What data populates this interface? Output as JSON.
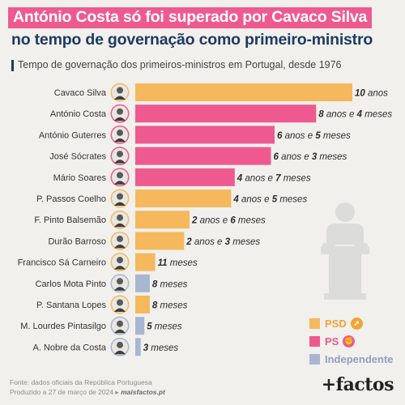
{
  "header": {
    "title_line1": "António Costa só foi superado por Cavaco Silva",
    "title_line2": "no tempo de governação como primeiro-ministro",
    "subtitle": "Tempo de governação dos primeiros-ministros em Portugal, desde 1976"
  },
  "colors": {
    "PSD": "#f5b85c",
    "PS": "#ee5a8f",
    "Independente": "#a9b6d1",
    "title_bg": "#ee5a8f",
    "title_blue": "#1f3b63"
  },
  "chart_data": {
    "type": "bar",
    "orientation": "horizontal",
    "unit": "months",
    "categories": [
      "Cavaco Silva",
      "António Costa",
      "António Guterres",
      "José Sócrates",
      "Mário Soares",
      "P. Passos Coelho",
      "F. Pinto Balsemão",
      "Durão Barroso",
      "Francisco Sá Carneiro",
      "Carlos Mota Pinto",
      "P. Santana Lopes",
      "M. Lourdes Pintasilgo",
      "A. Nobre da Costa"
    ],
    "values": [
      120,
      100,
      77,
      75,
      55,
      53,
      30,
      27,
      11,
      8,
      8,
      5,
      3
    ],
    "parties": [
      "PSD",
      "PS",
      "PS",
      "PS",
      "PS",
      "PSD",
      "PSD",
      "PSD",
      "PSD",
      "Independente",
      "PSD",
      "Independente",
      "Independente"
    ],
    "data_labels": [
      [
        {
          "n": "10",
          "b": true
        },
        {
          "n": " anos",
          "b": false
        }
      ],
      [
        {
          "n": "8",
          "b": true
        },
        {
          "n": " anos e ",
          "b": false
        },
        {
          "n": "4",
          "b": true
        },
        {
          "n": " meses",
          "b": false
        }
      ],
      [
        {
          "n": "6",
          "b": true
        },
        {
          "n": " anos e ",
          "b": false
        },
        {
          "n": "5",
          "b": true
        },
        {
          "n": " meses",
          "b": false
        }
      ],
      [
        {
          "n": "6",
          "b": true
        },
        {
          "n": " anos e ",
          "b": false
        },
        {
          "n": "3",
          "b": true
        },
        {
          "n": " meses",
          "b": false
        }
      ],
      [
        {
          "n": "4",
          "b": true
        },
        {
          "n": " anos e ",
          "b": false
        },
        {
          "n": "7",
          "b": true
        },
        {
          "n": " meses",
          "b": false
        }
      ],
      [
        {
          "n": "4",
          "b": true
        },
        {
          "n": " anos e ",
          "b": false
        },
        {
          "n": "5",
          "b": true
        },
        {
          "n": " meses",
          "b": false
        }
      ],
      [
        {
          "n": "2",
          "b": true
        },
        {
          "n": " anos e ",
          "b": false
        },
        {
          "n": "6",
          "b": true
        },
        {
          "n": " meses",
          "b": false
        }
      ],
      [
        {
          "n": "2",
          "b": true
        },
        {
          "n": " anos e ",
          "b": false
        },
        {
          "n": "3",
          "b": true
        },
        {
          "n": " meses",
          "b": false
        }
      ],
      [
        {
          "n": "11",
          "b": true
        },
        {
          "n": " meses",
          "b": false
        }
      ],
      [
        {
          "n": "8",
          "b": true
        },
        {
          "n": " meses",
          "b": false
        }
      ],
      [
        {
          "n": "8",
          "b": true
        },
        {
          "n": " meses",
          "b": false
        }
      ],
      [
        {
          "n": "5",
          "b": true
        },
        {
          "n": " meses",
          "b": false
        }
      ],
      [
        {
          "n": "3",
          "b": true
        },
        {
          "n": " meses",
          "b": false
        }
      ]
    ],
    "xlim": [
      0,
      120
    ]
  },
  "legend": [
    {
      "label": "PSD",
      "icon": "arrow-hands-icon"
    },
    {
      "label": "PS",
      "icon": "fist-rose-icon"
    },
    {
      "label": "Independente",
      "icon": ""
    }
  ],
  "footer": {
    "source": "Fonte: dados oficiais da República Portuguesa",
    "produced": "Produzido a 27 de março de 2024 ▸",
    "site": "maisfactos.pt"
  },
  "logo": "+factos"
}
